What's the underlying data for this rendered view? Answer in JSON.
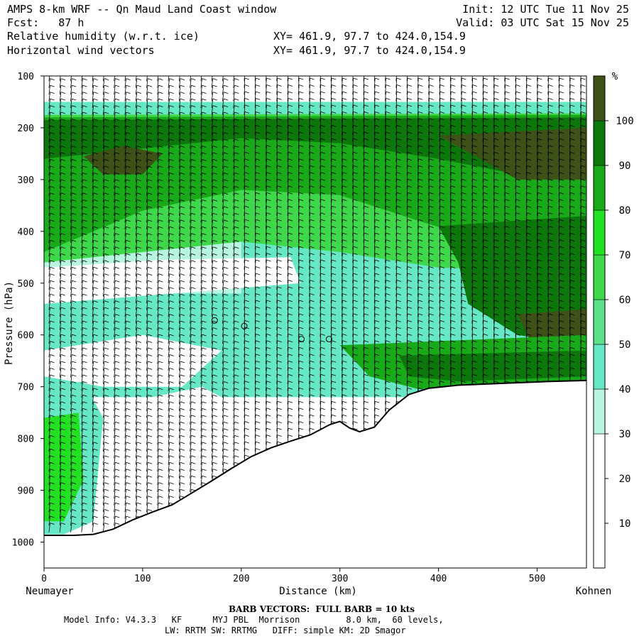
{
  "header": {
    "title": "AMPS 8-km WRF -- Qn Maud Land Coast window",
    "forecast": "Fcst:   87 h",
    "field1": "Relative humidity (w.r.t. ice)",
    "field2": "Horizontal wind vectors",
    "init": "Init: 12 UTC Tue 11 Nov 25",
    "valid": "Valid: 03 UTC Sat 15 Nov 25",
    "xy1": "XY= 461.9, 97.7 to 424.0,154.9",
    "xy2": "XY= 461.9, 97.7 to 424.0,154.9"
  },
  "footer": {
    "barb": "BARB VECTORS:  FULL BARB = 10 kts",
    "model1": "Model Info: V4.3.3   KF      MYJ PBL  Morrison         8.0 km,  60 levels,",
    "model2": "LW: RRTM SW: RRTMG   DIFF: simple KM: 2D Smagor"
  },
  "chart_data": {
    "type": "heatmap",
    "title": "Relative humidity (w.r.t. ice) cross-section with horizontal wind vectors",
    "xlabel": "Distance (km)",
    "ylabel": "Pressure (hPa)",
    "xlim": [
      0,
      550
    ],
    "ylim": [
      1050,
      100
    ],
    "x_ticks": [
      0,
      100,
      200,
      300,
      400,
      500
    ],
    "y_ticks": [
      100,
      200,
      300,
      400,
      500,
      600,
      700,
      800,
      900,
      1000
    ],
    "endpoints": {
      "left": "Neumayer",
      "right": "Kohnen"
    },
    "colorbar": {
      "unit": "%",
      "ticks": [
        10,
        20,
        30,
        40,
        50,
        60,
        70,
        80,
        90,
        100
      ],
      "bins": [
        {
          "lo": 0,
          "hi": 30,
          "color": "#ffffff"
        },
        {
          "lo": 30,
          "hi": 40,
          "color": "#b8f5e0"
        },
        {
          "lo": 40,
          "hi": 50,
          "color": "#66e8c6"
        },
        {
          "lo": 50,
          "hi": 60,
          "color": "#5de08a"
        },
        {
          "lo": 60,
          "hi": 70,
          "color": "#3ed84a"
        },
        {
          "lo": 70,
          "hi": 80,
          "color": "#22e022"
        },
        {
          "lo": 80,
          "hi": 90,
          "color": "#18aa18"
        },
        {
          "lo": 90,
          "hi": 100,
          "color": "#0c780c"
        },
        {
          "lo": 100,
          "hi": 110,
          "color": "#3e5218"
        }
      ]
    },
    "terrain": [
      {
        "x": 0,
        "p": 987
      },
      {
        "x": 30,
        "p": 987
      },
      {
        "x": 50,
        "p": 985
      },
      {
        "x": 70,
        "p": 975
      },
      {
        "x": 90,
        "p": 957
      },
      {
        "x": 110,
        "p": 942
      },
      {
        "x": 130,
        "p": 928
      },
      {
        "x": 150,
        "p": 905
      },
      {
        "x": 170,
        "p": 882
      },
      {
        "x": 190,
        "p": 858
      },
      {
        "x": 210,
        "p": 835
      },
      {
        "x": 230,
        "p": 818
      },
      {
        "x": 250,
        "p": 805
      },
      {
        "x": 270,
        "p": 793
      },
      {
        "x": 290,
        "p": 773
      },
      {
        "x": 300,
        "p": 767
      },
      {
        "x": 310,
        "p": 780
      },
      {
        "x": 320,
        "p": 787
      },
      {
        "x": 335,
        "p": 778
      },
      {
        "x": 350,
        "p": 745
      },
      {
        "x": 370,
        "p": 715
      },
      {
        "x": 390,
        "p": 703
      },
      {
        "x": 420,
        "p": 697
      },
      {
        "x": 470,
        "p": 693
      },
      {
        "x": 510,
        "p": 690
      },
      {
        "x": 550,
        "p": 688
      }
    ],
    "regions": [
      {
        "rh": 40,
        "desc": "upper layer 150-175 hPa",
        "poly": [
          [
            0,
            150
          ],
          [
            550,
            150
          ],
          [
            550,
            172
          ],
          [
            0,
            175
          ]
        ]
      },
      {
        "rh": 60,
        "desc": "moist band 175-450 hPa",
        "poly": [
          [
            0,
            175
          ],
          [
            550,
            172
          ],
          [
            550,
            480
          ],
          [
            400,
            470
          ],
          [
            300,
            440
          ],
          [
            200,
            420
          ],
          [
            100,
            440
          ],
          [
            0,
            460
          ]
        ]
      },
      {
        "rh": 80,
        "desc": "upper moist layer",
        "poly": [
          [
            0,
            180
          ],
          [
            550,
            175
          ],
          [
            550,
            430
          ],
          [
            450,
            420
          ],
          [
            380,
            380
          ],
          [
            300,
            330
          ],
          [
            200,
            320
          ],
          [
            100,
            360
          ],
          [
            0,
            440
          ]
        ]
      },
      {
        "rh": 90,
        "desc": "very moist upper",
        "poly": [
          [
            0,
            185
          ],
          [
            550,
            180
          ],
          [
            550,
            300
          ],
          [
            480,
            290
          ],
          [
            400,
            260
          ],
          [
            300,
            230
          ],
          [
            200,
            220
          ],
          [
            100,
            240
          ],
          [
            0,
            260
          ]
        ]
      },
      {
        "rh": 100,
        "desc": "saturated pocket right",
        "poly": [
          [
            400,
            215
          ],
          [
            550,
            200
          ],
          [
            550,
            300
          ],
          [
            480,
            300
          ]
        ]
      },
      {
        "rh": 100,
        "desc": "saturated pocket left",
        "poly": [
          [
            40,
            255
          ],
          [
            80,
            235
          ],
          [
            120,
            250
          ],
          [
            100,
            290
          ],
          [
            60,
            290
          ]
        ]
      },
      {
        "rh": 90,
        "desc": "mid moist right",
        "poly": [
          [
            400,
            390
          ],
          [
            550,
            370
          ],
          [
            550,
            620
          ],
          [
            480,
            600
          ],
          [
            430,
            540
          ],
          [
            420,
            460
          ]
        ]
      },
      {
        "rh": 100,
        "desc": "saturated mid right",
        "poly": [
          [
            480,
            560
          ],
          [
            550,
            550
          ],
          [
            550,
            640
          ],
          [
            500,
            640
          ]
        ]
      },
      {
        "rh": 80,
        "desc": "low moist band",
        "poly": [
          [
            300,
            620
          ],
          [
            550,
            600
          ],
          [
            550,
            690
          ],
          [
            420,
            697
          ],
          [
            380,
            705
          ],
          [
            330,
            680
          ]
        ]
      },
      {
        "rh": 90,
        "desc": "low moist core",
        "poly": [
          [
            360,
            640
          ],
          [
            550,
            630
          ],
          [
            550,
            680
          ],
          [
            420,
            690
          ],
          [
            370,
            680
          ]
        ]
      },
      {
        "rh": 20,
        "desc": "dry tongue 470-560 hPa",
        "poly": [
          [
            0,
            470
          ],
          [
            120,
            455
          ],
          [
            250,
            450
          ],
          [
            260,
            500
          ],
          [
            130,
            520
          ],
          [
            0,
            540
          ]
        ]
      },
      {
        "rh": 20,
        "desc": "dry layer near 650 hPa",
        "poly": [
          [
            0,
            630
          ],
          [
            100,
            600
          ],
          [
            180,
            630
          ],
          [
            140,
            700
          ],
          [
            60,
            700
          ],
          [
            0,
            680
          ]
        ]
      },
      {
        "rh": 20,
        "desc": "dry low level",
        "poly": [
          [
            60,
            800
          ],
          [
            110,
            720
          ],
          [
            160,
            700
          ],
          [
            200,
            740
          ],
          [
            170,
            870
          ],
          [
            110,
            940
          ],
          [
            70,
            975
          ]
        ]
      },
      {
        "rh": 40,
        "desc": "low moist left edge",
        "poly": [
          [
            0,
            700
          ],
          [
            40,
            690
          ],
          [
            60,
            760
          ],
          [
            50,
            960
          ],
          [
            20,
            985
          ],
          [
            0,
            985
          ]
        ]
      },
      {
        "rh": 70,
        "desc": "lower left moist pocket",
        "poly": [
          [
            0,
            760
          ],
          [
            35,
            750
          ],
          [
            40,
            880
          ],
          [
            20,
            960
          ],
          [
            0,
            960
          ]
        ]
      }
    ],
    "calm_points": [
      {
        "x": 173,
        "p": 572
      },
      {
        "x": 203,
        "p": 583
      },
      {
        "x": 261,
        "p": 608
      },
      {
        "x": 289,
        "p": 608
      }
    ]
  }
}
